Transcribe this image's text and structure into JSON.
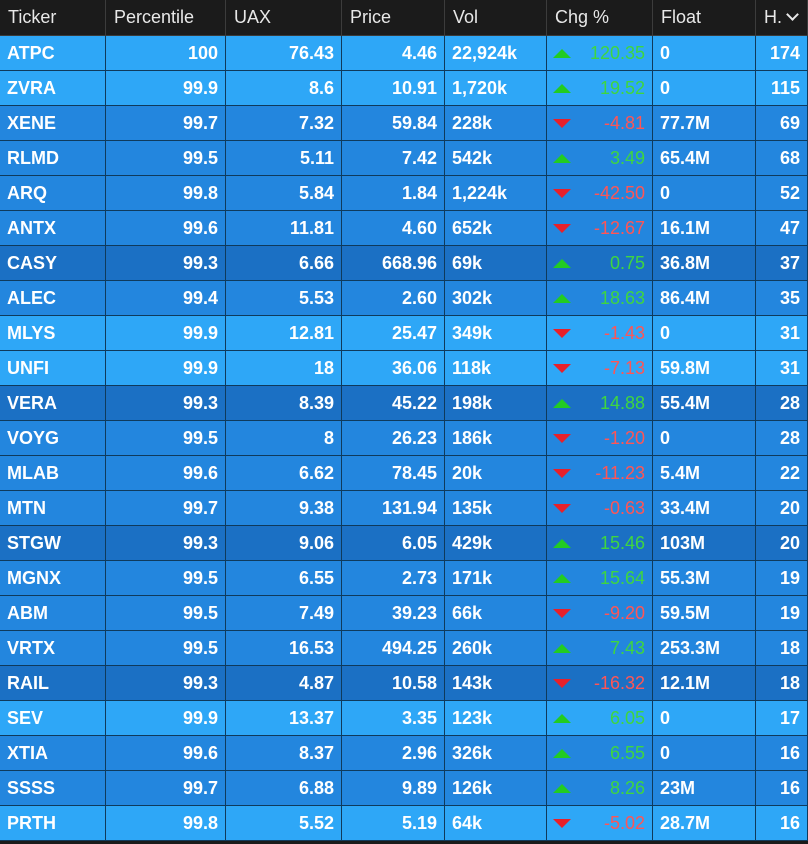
{
  "columns": [
    "Ticker",
    "Percentile",
    "UAX",
    "Price",
    "Vol",
    "Chg %",
    "Float",
    "H."
  ],
  "sort_indicator": "chevron-down-icon",
  "colors": {
    "row_bright": "#2ea7f7",
    "row_mid": "#2386de",
    "row_dark": "#1b70c4",
    "chg_up": "#3fd63f",
    "chg_down": "#ff5555"
  },
  "rows": [
    {
      "ticker": "ATPC",
      "percentile": "100",
      "uax": "76.43",
      "price": "4.46",
      "vol": "22,924k",
      "chg": "120.35",
      "dir": "up",
      "float": "0",
      "h": "174",
      "shade": "bright"
    },
    {
      "ticker": "ZVRA",
      "percentile": "99.9",
      "uax": "8.6",
      "price": "10.91",
      "vol": "1,720k",
      "chg": "19.52",
      "dir": "up",
      "float": "0",
      "h": "115",
      "shade": "bright"
    },
    {
      "ticker": "XENE",
      "percentile": "99.7",
      "uax": "7.32",
      "price": "59.84",
      "vol": "228k",
      "chg": "-4.81",
      "dir": "down",
      "float": "77.7M",
      "h": "69",
      "shade": "mid"
    },
    {
      "ticker": "RLMD",
      "percentile": "99.5",
      "uax": "5.11",
      "price": "7.42",
      "vol": "542k",
      "chg": "3.49",
      "dir": "up",
      "float": "65.4M",
      "h": "68",
      "shade": "mid"
    },
    {
      "ticker": "ARQ",
      "percentile": "99.8",
      "uax": "5.84",
      "price": "1.84",
      "vol": "1,224k",
      "chg": "-42.50",
      "dir": "down",
      "float": "0",
      "h": "52",
      "shade": "mid"
    },
    {
      "ticker": "ANTX",
      "percentile": "99.6",
      "uax": "11.81",
      "price": "4.60",
      "vol": "652k",
      "chg": "-12.67",
      "dir": "down",
      "float": "16.1M",
      "h": "47",
      "shade": "mid"
    },
    {
      "ticker": "CASY",
      "percentile": "99.3",
      "uax": "6.66",
      "price": "668.96",
      "vol": "69k",
      "chg": "0.75",
      "dir": "up",
      "float": "36.8M",
      "h": "37",
      "shade": "dark"
    },
    {
      "ticker": "ALEC",
      "percentile": "99.4",
      "uax": "5.53",
      "price": "2.60",
      "vol": "302k",
      "chg": "18.63",
      "dir": "up",
      "float": "86.4M",
      "h": "35",
      "shade": "mid"
    },
    {
      "ticker": "MLYS",
      "percentile": "99.9",
      "uax": "12.81",
      "price": "25.47",
      "vol": "349k",
      "chg": "-1.43",
      "dir": "down",
      "float": "0",
      "h": "31",
      "shade": "bright"
    },
    {
      "ticker": "UNFI",
      "percentile": "99.9",
      "uax": "18",
      "price": "36.06",
      "vol": "118k",
      "chg": "-7.13",
      "dir": "down",
      "float": "59.8M",
      "h": "31",
      "shade": "bright"
    },
    {
      "ticker": "VERA",
      "percentile": "99.3",
      "uax": "8.39",
      "price": "45.22",
      "vol": "198k",
      "chg": "14.88",
      "dir": "up",
      "float": "55.4M",
      "h": "28",
      "shade": "dark"
    },
    {
      "ticker": "VOYG",
      "percentile": "99.5",
      "uax": "8",
      "price": "26.23",
      "vol": "186k",
      "chg": "-1.20",
      "dir": "down",
      "float": "0",
      "h": "28",
      "shade": "mid"
    },
    {
      "ticker": "MLAB",
      "percentile": "99.6",
      "uax": "6.62",
      "price": "78.45",
      "vol": "20k",
      "chg": "-11.23",
      "dir": "down",
      "float": "5.4M",
      "h": "22",
      "shade": "mid"
    },
    {
      "ticker": "MTN",
      "percentile": "99.7",
      "uax": "9.38",
      "price": "131.94",
      "vol": "135k",
      "chg": "-0.63",
      "dir": "down",
      "float": "33.4M",
      "h": "20",
      "shade": "mid"
    },
    {
      "ticker": "STGW",
      "percentile": "99.3",
      "uax": "9.06",
      "price": "6.05",
      "vol": "429k",
      "chg": "15.46",
      "dir": "up",
      "float": "103M",
      "h": "20",
      "shade": "dark"
    },
    {
      "ticker": "MGNX",
      "percentile": "99.5",
      "uax": "6.55",
      "price": "2.73",
      "vol": "171k",
      "chg": "15.64",
      "dir": "up",
      "float": "55.3M",
      "h": "19",
      "shade": "mid"
    },
    {
      "ticker": "ABM",
      "percentile": "99.5",
      "uax": "7.49",
      "price": "39.23",
      "vol": "66k",
      "chg": "-9.20",
      "dir": "down",
      "float": "59.5M",
      "h": "19",
      "shade": "mid"
    },
    {
      "ticker": "VRTX",
      "percentile": "99.5",
      "uax": "16.53",
      "price": "494.25",
      "vol": "260k",
      "chg": "7.43",
      "dir": "up",
      "float": "253.3M",
      "h": "18",
      "shade": "mid"
    },
    {
      "ticker": "RAIL",
      "percentile": "99.3",
      "uax": "4.87",
      "price": "10.58",
      "vol": "143k",
      "chg": "-16.32",
      "dir": "down",
      "float": "12.1M",
      "h": "18",
      "shade": "dark"
    },
    {
      "ticker": "SEV",
      "percentile": "99.9",
      "uax": "13.37",
      "price": "3.35",
      "vol": "123k",
      "chg": "6.05",
      "dir": "up",
      "float": "0",
      "h": "17",
      "shade": "bright"
    },
    {
      "ticker": "XTIA",
      "percentile": "99.6",
      "uax": "8.37",
      "price": "2.96",
      "vol": "326k",
      "chg": "6.55",
      "dir": "up",
      "float": "0",
      "h": "16",
      "shade": "mid"
    },
    {
      "ticker": "SSSS",
      "percentile": "99.7",
      "uax": "6.88",
      "price": "9.89",
      "vol": "126k",
      "chg": "8.26",
      "dir": "up",
      "float": "23M",
      "h": "16",
      "shade": "mid"
    },
    {
      "ticker": "PRTH",
      "percentile": "99.8",
      "uax": "5.52",
      "price": "5.19",
      "vol": "64k",
      "chg": "-5.02",
      "dir": "down",
      "float": "28.7M",
      "h": "16",
      "shade": "bright"
    }
  ]
}
